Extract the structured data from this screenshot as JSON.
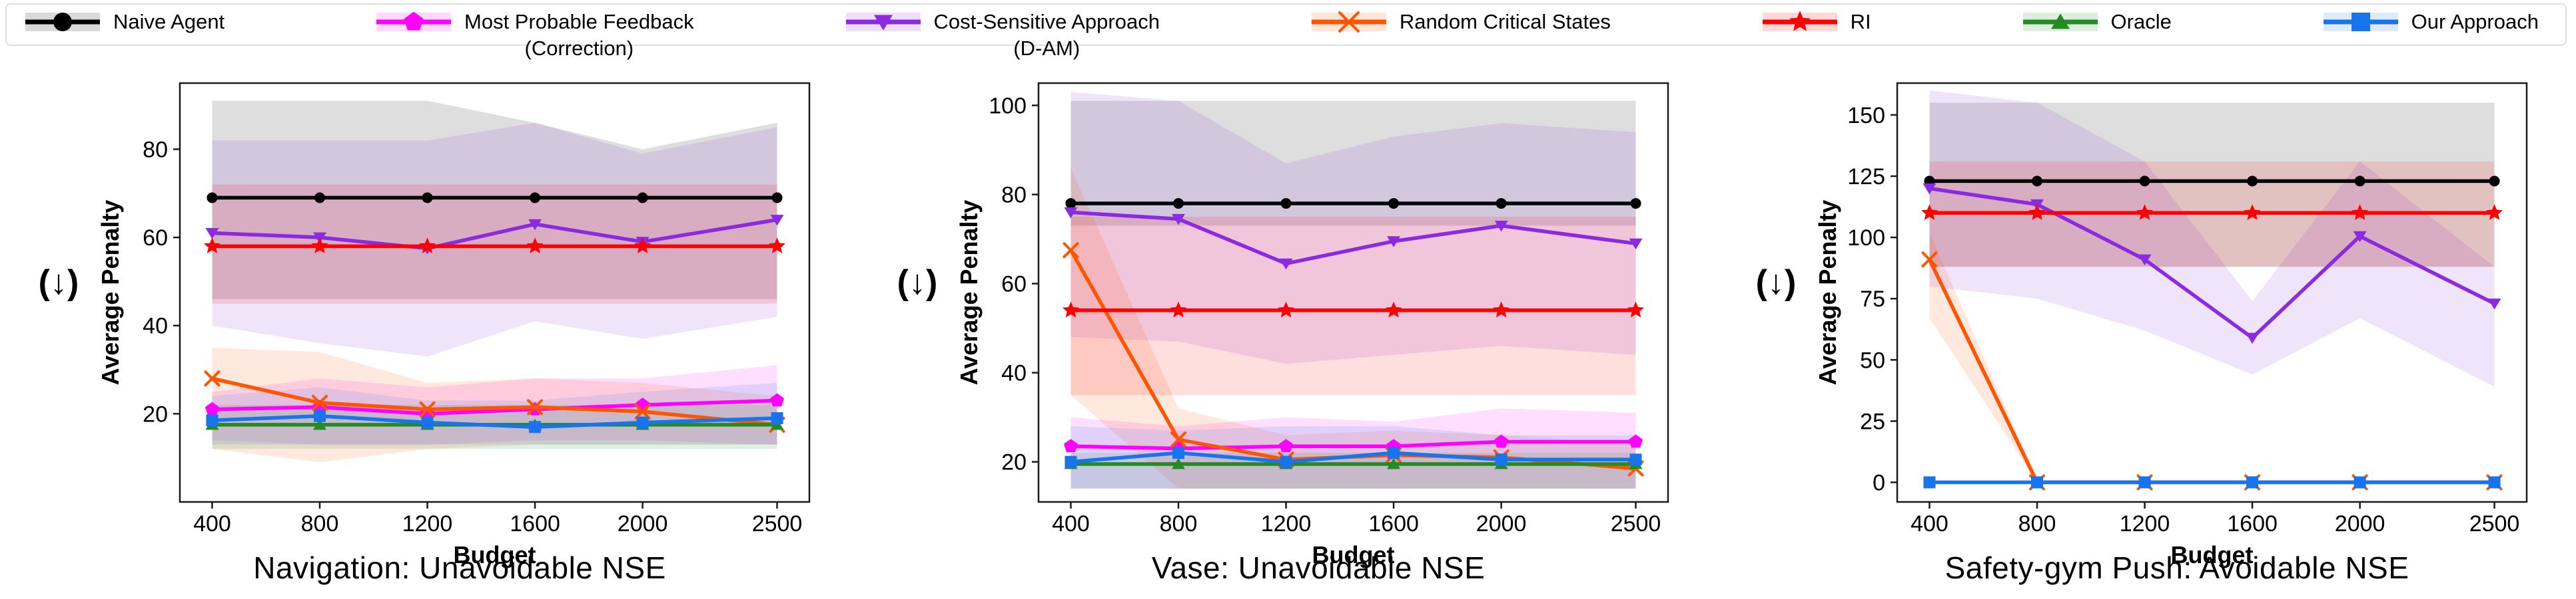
{
  "ui": {
    "down_arrow": "(↓)"
  },
  "legend": {
    "items": [
      {
        "key": "naive",
        "label": "Naive Agent"
      },
      {
        "key": "mpf",
        "label": "Most Probable Feedback",
        "sublabel": "(Correction)"
      },
      {
        "key": "csa",
        "label": "Cost-Sensitive Approach",
        "sublabel": "(D-AM)"
      },
      {
        "key": "rcs",
        "label": "Random Critical States"
      },
      {
        "key": "ri",
        "label": "RI"
      },
      {
        "key": "oracle",
        "label": "Oracle"
      },
      {
        "key": "our",
        "label": "Our Approach"
      }
    ]
  },
  "series_defs": {
    "naive": {
      "name": "Naive Agent",
      "color": "#000000",
      "marker": "circle"
    },
    "mpf": {
      "name": "Most Probable Feedback (Correction)",
      "color": "#FF00FF",
      "marker": "pentagon"
    },
    "csa": {
      "name": "Cost-Sensitive Approach (D-AM)",
      "color": "#8A2BE2",
      "marker": "triangle-down"
    },
    "rcs": {
      "name": "Random Critical States",
      "color": "#FF5500",
      "marker": "x"
    },
    "ri": {
      "name": "RI",
      "color": "#FF0000",
      "marker": "star"
    },
    "oracle": {
      "name": "Oracle",
      "color": "#228B22",
      "marker": "triangle-up"
    },
    "our": {
      "name": "Our Approach",
      "color": "#1874ED",
      "marker": "square"
    }
  },
  "chart_data": [
    {
      "type": "line",
      "title": "Navigation: Unavoidable NSE",
      "xlabel": "Budget",
      "ylabel": "Average Penalty",
      "x": [
        400,
        800,
        1200,
        1600,
        2000,
        2500
      ],
      "xtick_labels": [
        "400",
        "800",
        "1200",
        "1600",
        "2000",
        "2500"
      ],
      "xlim": [
        280,
        2620
      ],
      "ylim": [
        0,
        95
      ],
      "yticks": [
        20,
        40,
        60,
        80
      ],
      "grid": false,
      "legend_position": "shared-top",
      "series": [
        {
          "key": "naive",
          "values": [
            69,
            69,
            69,
            69,
            69,
            69
          ],
          "band_lo": [
            46,
            46,
            46,
            46,
            46,
            46
          ],
          "band_hi": [
            91,
            91,
            91,
            86,
            80,
            86
          ]
        },
        {
          "key": "mpf",
          "values": [
            21,
            21.5,
            20,
            21,
            22,
            23
          ],
          "band_lo": [
            14,
            13,
            13,
            14,
            14,
            13
          ],
          "band_hi": [
            25,
            28,
            26,
            28,
            28,
            31
          ]
        },
        {
          "key": "csa",
          "values": [
            61,
            60,
            57.5,
            63,
            59,
            64
          ],
          "band_lo": [
            40,
            36,
            33,
            41,
            37,
            42
          ],
          "band_hi": [
            82,
            82,
            82,
            86,
            79,
            85
          ]
        },
        {
          "key": "rcs",
          "values": [
            28,
            22.5,
            21,
            21.5,
            20.5,
            17.5
          ],
          "band_lo": [
            12,
            9,
            12,
            13,
            13,
            13
          ],
          "band_hi": [
            35,
            34,
            27,
            28,
            27,
            24
          ]
        },
        {
          "key": "ri",
          "values": [
            58,
            58,
            58,
            58,
            58,
            58
          ],
          "band_lo": [
            45,
            45,
            45,
            45,
            45,
            45
          ],
          "band_hi": [
            72,
            72,
            72,
            72,
            72,
            72
          ]
        },
        {
          "key": "oracle",
          "values": [
            17.5,
            17.5,
            17.5,
            17.5,
            17.5,
            17.5
          ],
          "band_lo": [
            12,
            12,
            12,
            12,
            12,
            12
          ],
          "band_hi": [
            22,
            22,
            22,
            22,
            22,
            22
          ]
        },
        {
          "key": "our",
          "values": [
            18.5,
            19.5,
            18,
            17,
            18,
            19
          ],
          "band_lo": [
            13,
            13,
            13,
            13,
            13,
            13
          ],
          "band_hi": [
            24,
            26,
            23,
            23,
            25,
            27
          ]
        }
      ]
    },
    {
      "type": "line",
      "title": "Vase: Unavoidable NSE",
      "xlabel": "Budget",
      "ylabel": "Average Penalty",
      "x": [
        400,
        800,
        1200,
        1600,
        2000,
        2500
      ],
      "xtick_labels": [
        "400",
        "800",
        "1200",
        "1600",
        "2000",
        "2500"
      ],
      "xlim": [
        280,
        2620
      ],
      "ylim": [
        11,
        105
      ],
      "yticks": [
        20,
        40,
        60,
        80,
        100
      ],
      "grid": false,
      "legend_position": "shared-top",
      "series": [
        {
          "key": "naive",
          "values": [
            78,
            78,
            78,
            78,
            78,
            78
          ],
          "band_lo": [
            73,
            73,
            73,
            73,
            73,
            73
          ],
          "band_hi": [
            101,
            101,
            101,
            101,
            101,
            101
          ]
        },
        {
          "key": "mpf",
          "values": [
            23.5,
            23,
            23.5,
            23.5,
            24.5,
            24.5
          ],
          "band_lo": [
            14,
            14,
            14,
            14,
            14,
            14
          ],
          "band_hi": [
            30,
            28,
            30,
            29,
            32,
            31
          ]
        },
        {
          "key": "csa",
          "values": [
            76,
            74.5,
            64.5,
            69.5,
            73,
            69
          ],
          "band_lo": [
            48,
            47,
            42,
            44,
            46,
            44
          ],
          "band_hi": [
            103,
            101,
            87,
            93,
            96,
            94
          ]
        },
        {
          "key": "rcs",
          "values": [
            67.5,
            25,
            20.5,
            21.5,
            21,
            18.5
          ],
          "band_lo": [
            35,
            14,
            14,
            14,
            14,
            14
          ],
          "band_hi": [
            86,
            32,
            26,
            27,
            26,
            24
          ]
        },
        {
          "key": "ri",
          "values": [
            54,
            54,
            54,
            54,
            54,
            54
          ],
          "band_lo": [
            35,
            35,
            35,
            35,
            35,
            35
          ],
          "band_hi": [
            75,
            75,
            75,
            75,
            75,
            75
          ]
        },
        {
          "key": "oracle",
          "values": [
            19.5,
            19.5,
            19.5,
            19.5,
            19.5,
            19.5
          ],
          "band_lo": [
            14,
            14,
            14,
            14,
            14,
            14
          ],
          "band_hi": [
            22,
            22,
            22,
            22,
            22,
            22
          ]
        },
        {
          "key": "our",
          "values": [
            20,
            22,
            20,
            22,
            20.5,
            20.5
          ],
          "band_lo": [
            14,
            14,
            14,
            14,
            14,
            14
          ],
          "band_hi": [
            28,
            27,
            28,
            28,
            26,
            26
          ]
        }
      ]
    },
    {
      "type": "line",
      "title": "Safety-gym Push: Avoidable NSE",
      "xlabel": "Budget",
      "ylabel": "Average Penalty",
      "x": [
        400,
        800,
        1200,
        1600,
        2000,
        2500
      ],
      "xtick_labels": [
        "400",
        "800",
        "1200",
        "1600",
        "2000",
        "2500"
      ],
      "xlim": [
        280,
        2620
      ],
      "ylim": [
        -8,
        163
      ],
      "yticks": [
        0,
        25,
        50,
        75,
        100,
        125,
        150
      ],
      "grid": false,
      "legend_position": "shared-top",
      "series": [
        {
          "key": "naive",
          "values": [
            123,
            123,
            123,
            123,
            123,
            123
          ],
          "band_lo": [
            88,
            88,
            88,
            88,
            88,
            88
          ],
          "band_hi": [
            155,
            155,
            155,
            155,
            155,
            155
          ]
        },
        {
          "key": "csa",
          "values": [
            120,
            113.5,
            91,
            59,
            100.5,
            73
          ],
          "band_lo": [
            80,
            75,
            62,
            44,
            67,
            39
          ],
          "band_hi": [
            160,
            155,
            131,
            74,
            131,
            88
          ]
        },
        {
          "key": "rcs",
          "values": [
            91,
            0,
            0,
            0,
            0,
            0
          ],
          "band_lo": [
            67,
            0,
            0,
            0,
            0,
            0
          ],
          "band_hi": [
            102,
            1,
            1,
            1,
            1,
            1
          ]
        },
        {
          "key": "ri",
          "values": [
            110,
            110,
            110,
            110,
            110,
            110
          ],
          "band_lo": [
            88,
            88,
            88,
            88,
            88,
            88
          ],
          "band_hi": [
            131,
            131,
            131,
            131,
            131,
            131
          ]
        },
        {
          "key": "our",
          "values": [
            0,
            0,
            0,
            0,
            0,
            0
          ],
          "band_lo": [
            0,
            0,
            0,
            0,
            0,
            0
          ],
          "band_hi": [
            0,
            0,
            0,
            0,
            0,
            0
          ]
        }
      ]
    }
  ]
}
